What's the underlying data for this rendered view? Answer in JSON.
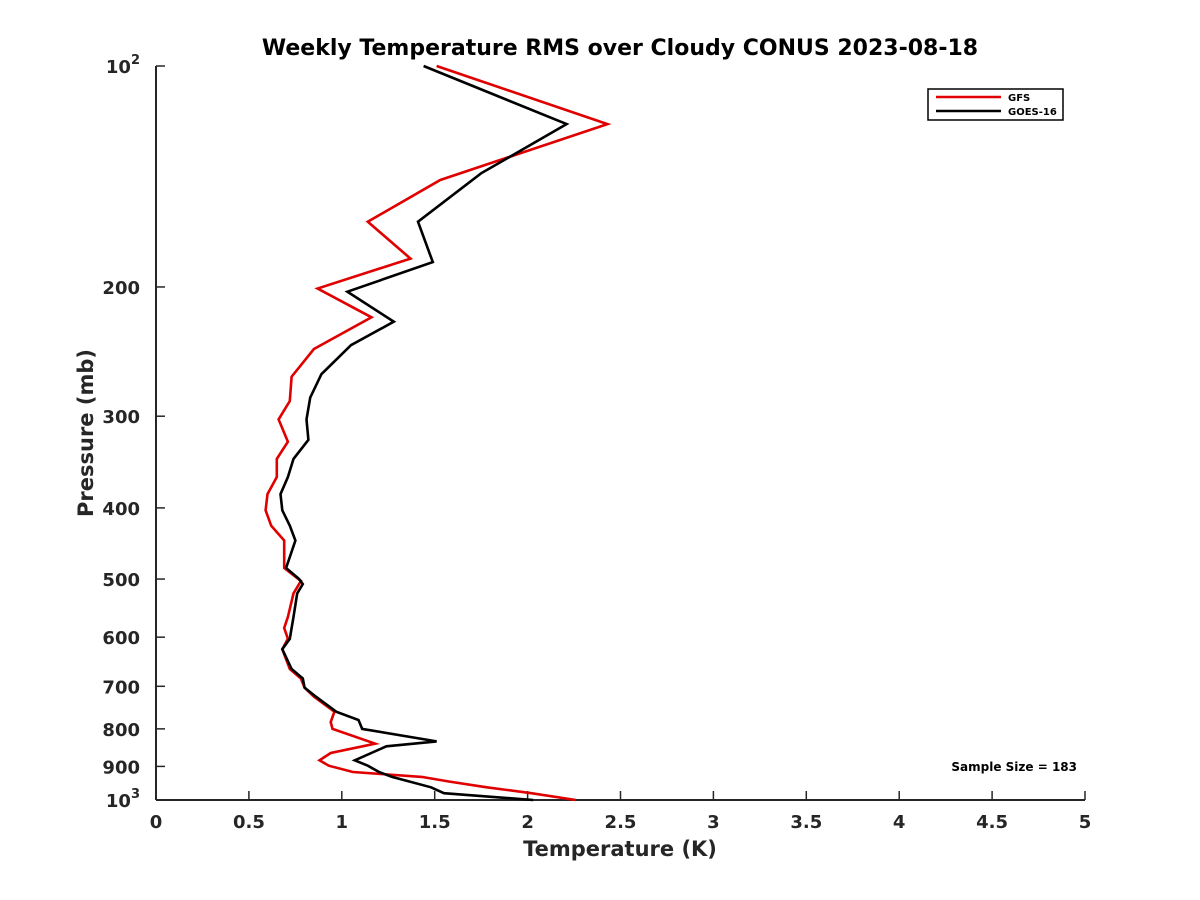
{
  "chart_data": {
    "type": "line",
    "title": "Weekly Temperature RMS over Cloudy CONUS 2023-08-18",
    "xlabel": "Temperature (K)",
    "ylabel": "Pressure (mb)",
    "xlim": [
      0,
      5
    ],
    "ylim": [
      100,
      1000
    ],
    "y_scale": "log",
    "y_reversed": true,
    "x_ticks": [
      0,
      0.5,
      1,
      1.5,
      2,
      2.5,
      3,
      3.5,
      4,
      4.5,
      5
    ],
    "x_tick_labels": [
      "0",
      "0.5",
      "1",
      "1.5",
      "2",
      "2.5",
      "3",
      "3.5",
      "4",
      "4.5",
      "5"
    ],
    "y_ticks": [
      100,
      200,
      300,
      400,
      500,
      600,
      700,
      800,
      900,
      1000
    ],
    "y_tick_labels": [
      {
        "base": "10",
        "exp": "2"
      },
      {
        "base": "200",
        "exp": ""
      },
      {
        "base": "300",
        "exp": ""
      },
      {
        "base": "400",
        "exp": ""
      },
      {
        "base": "500",
        "exp": ""
      },
      {
        "base": "600",
        "exp": ""
      },
      {
        "base": "700",
        "exp": ""
      },
      {
        "base": "800",
        "exp": ""
      },
      {
        "base": "900",
        "exp": ""
      },
      {
        "base": "10",
        "exp": "3"
      }
    ],
    "grid": false,
    "legend_position": "top-right",
    "annotation": "Sample Size = 183",
    "series": [
      {
        "name": "GFS",
        "color": "#e00000",
        "points": [
          [
            1.51,
            100
          ],
          [
            2.43,
            120
          ],
          [
            1.53,
            143
          ],
          [
            1.14,
            163
          ],
          [
            1.37,
            183
          ],
          [
            0.87,
            201
          ],
          [
            1.16,
            220
          ],
          [
            0.85,
            243
          ],
          [
            0.73,
            265
          ],
          [
            0.72,
            286
          ],
          [
            0.66,
            303
          ],
          [
            0.71,
            325
          ],
          [
            0.65,
            343
          ],
          [
            0.65,
            363
          ],
          [
            0.6,
            383
          ],
          [
            0.59,
            403
          ],
          [
            0.62,
            423
          ],
          [
            0.69,
            443
          ],
          [
            0.69,
            483
          ],
          [
            0.78,
            503
          ],
          [
            0.74,
            523
          ],
          [
            0.71,
            563
          ],
          [
            0.69,
            583
          ],
          [
            0.71,
            603
          ],
          [
            0.68,
            623
          ],
          [
            0.72,
            663
          ],
          [
            0.78,
            683
          ],
          [
            0.8,
            703
          ],
          [
            0.85,
            723
          ],
          [
            0.96,
            758
          ],
          [
            0.94,
            783
          ],
          [
            0.95,
            800
          ],
          [
            1.18,
            838
          ],
          [
            0.94,
            863
          ],
          [
            0.88,
            883
          ],
          [
            0.93,
            898
          ],
          [
            1.06,
            916
          ],
          [
            1.43,
            930
          ],
          [
            1.58,
            944
          ],
          [
            1.78,
            961
          ],
          [
            2.02,
            979
          ],
          [
            2.26,
            1000
          ]
        ]
      },
      {
        "name": "GOES-16",
        "color": "#000000",
        "points": [
          [
            1.44,
            100
          ],
          [
            2.21,
            120
          ],
          [
            1.75,
            140
          ],
          [
            1.41,
            163
          ],
          [
            1.49,
            185
          ],
          [
            1.03,
            203
          ],
          [
            1.28,
            223
          ],
          [
            1.05,
            240
          ],
          [
            0.89,
            263
          ],
          [
            0.83,
            283
          ],
          [
            0.81,
            303
          ],
          [
            0.82,
            323
          ],
          [
            0.74,
            343
          ],
          [
            0.71,
            363
          ],
          [
            0.67,
            383
          ],
          [
            0.68,
            403
          ],
          [
            0.72,
            423
          ],
          [
            0.75,
            443
          ],
          [
            0.7,
            483
          ],
          [
            0.77,
            500
          ],
          [
            0.79,
            508
          ],
          [
            0.76,
            523
          ],
          [
            0.74,
            563
          ],
          [
            0.72,
            603
          ],
          [
            0.68,
            623
          ],
          [
            0.73,
            663
          ],
          [
            0.79,
            683
          ],
          [
            0.8,
            703
          ],
          [
            0.86,
            723
          ],
          [
            0.97,
            758
          ],
          [
            1.09,
            778
          ],
          [
            1.11,
            800
          ],
          [
            1.51,
            832
          ],
          [
            1.24,
            845
          ],
          [
            1.07,
            883
          ],
          [
            1.14,
            898
          ],
          [
            1.2,
            916
          ],
          [
            1.27,
            930
          ],
          [
            1.48,
            961
          ],
          [
            1.55,
            979
          ],
          [
            2.03,
            1000
          ]
        ]
      }
    ]
  }
}
